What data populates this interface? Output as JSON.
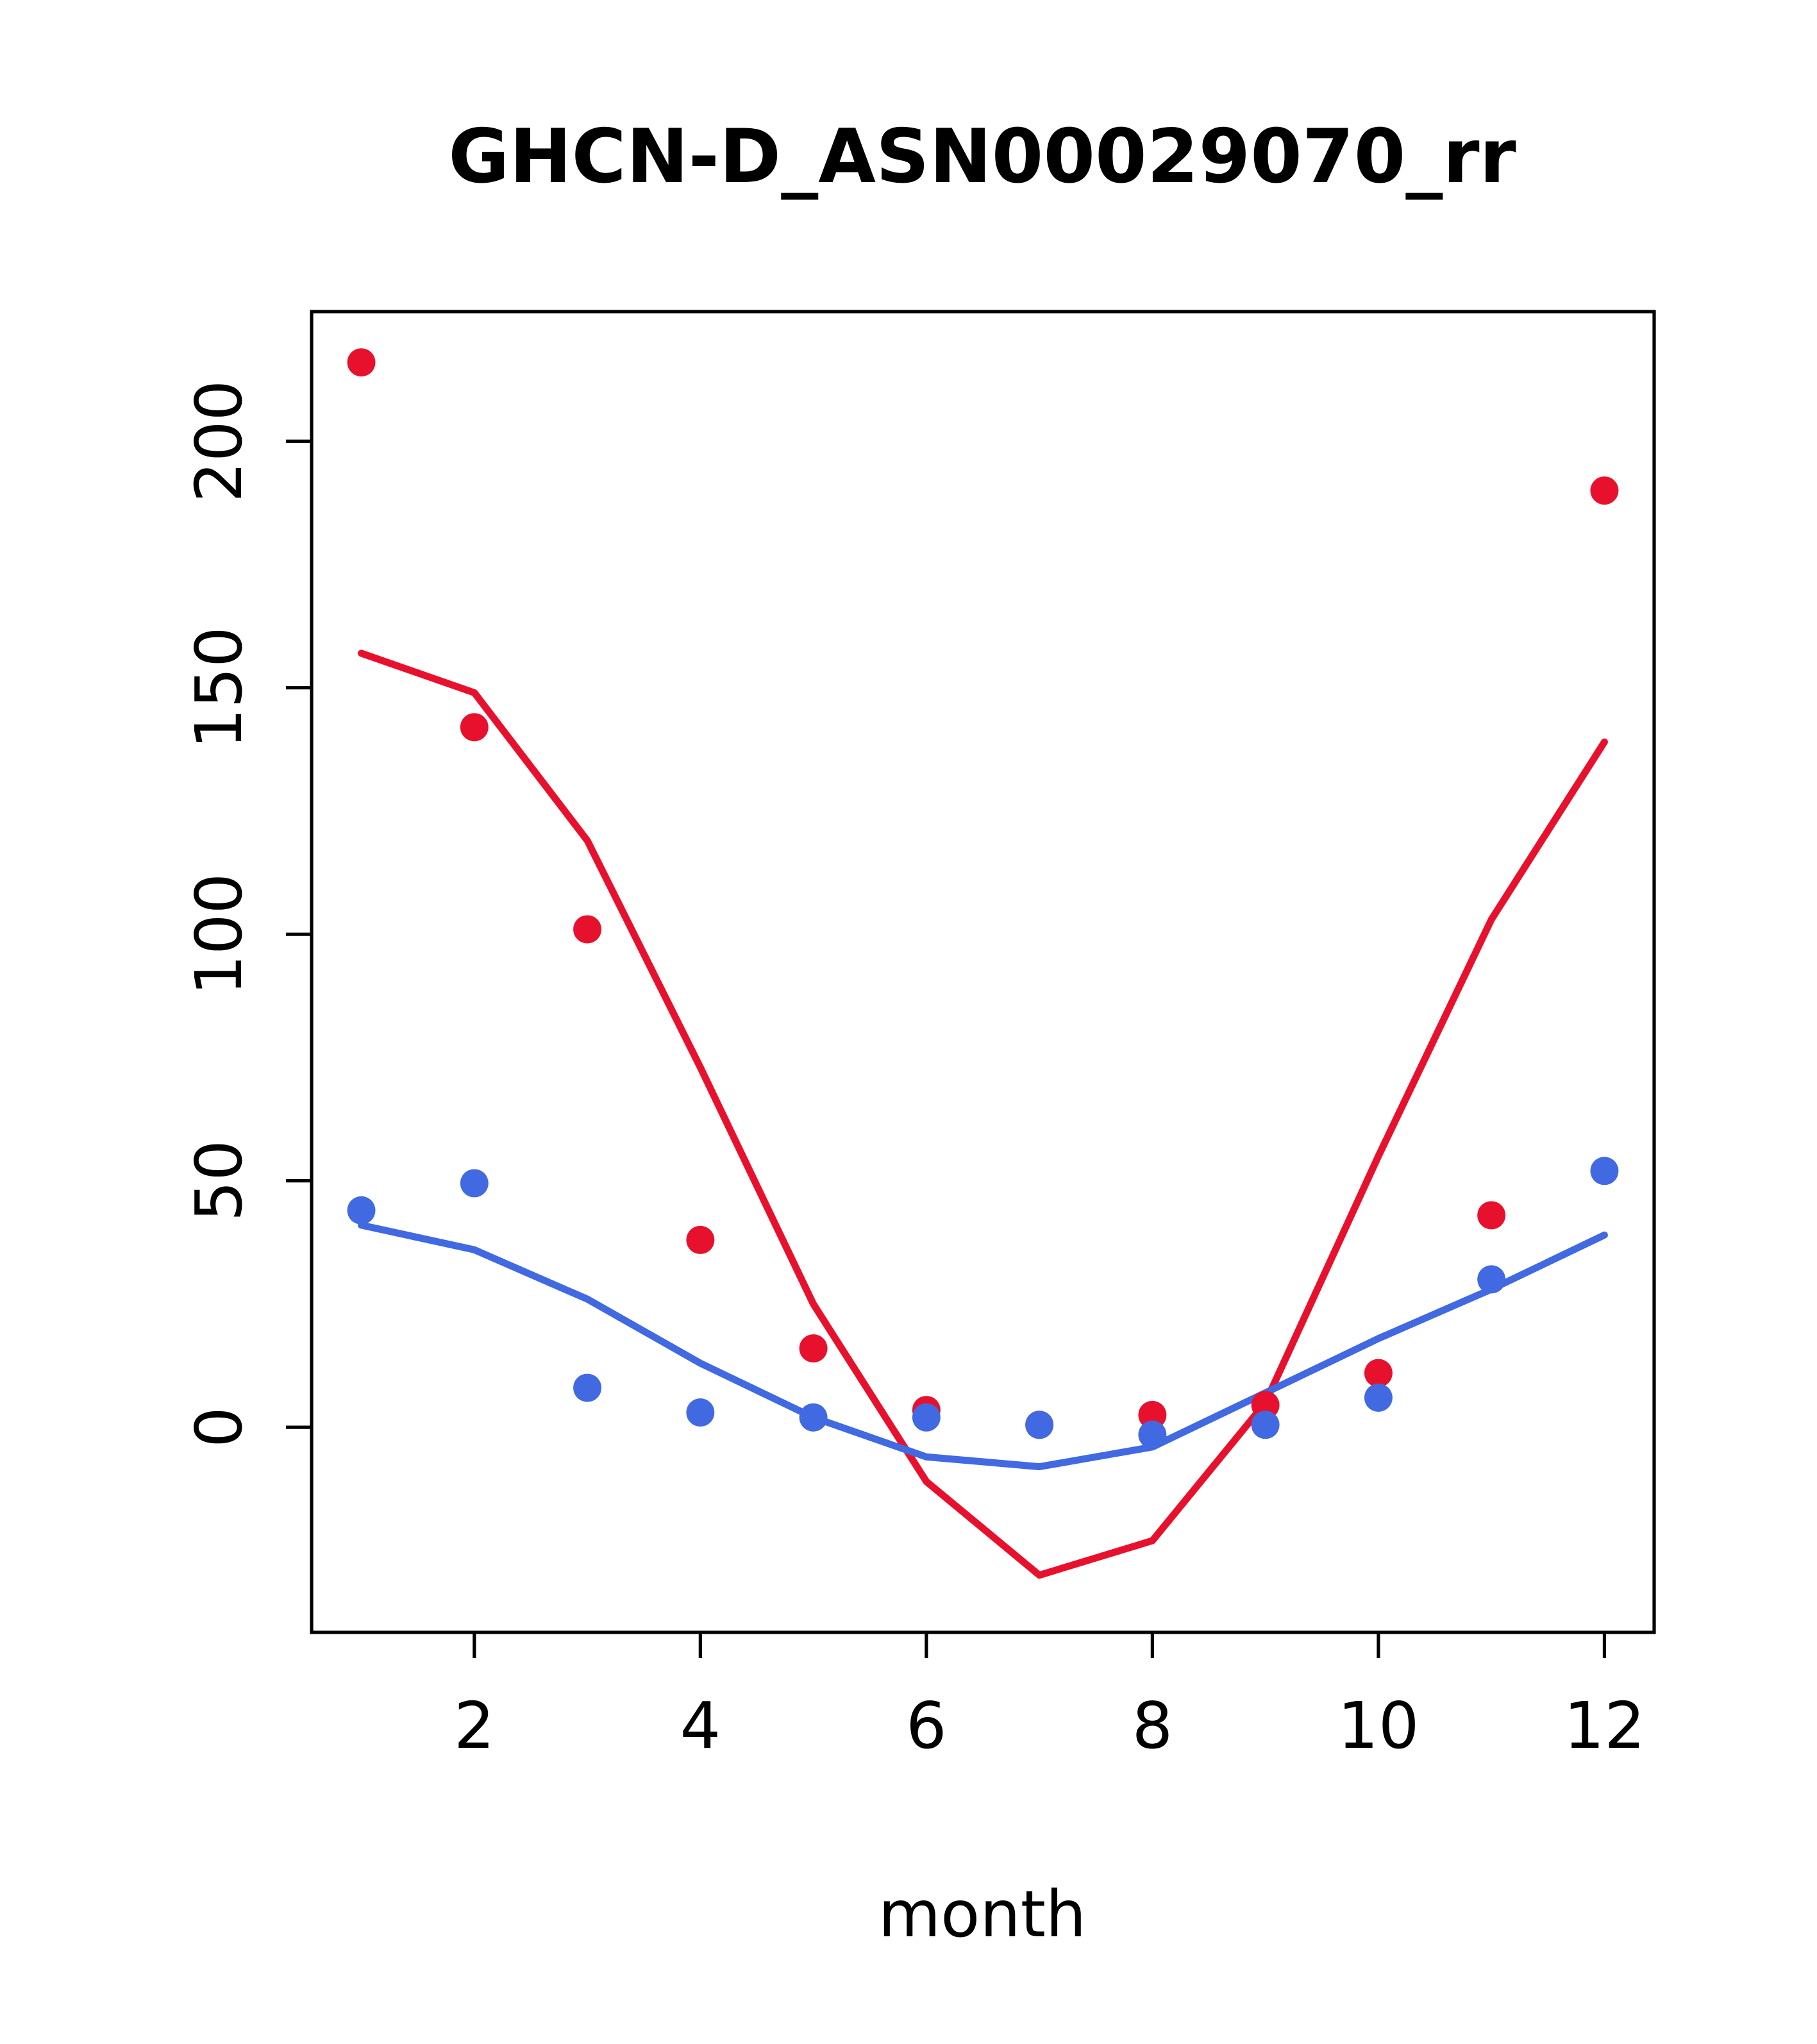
{
  "chart_data": {
    "type": "scatter",
    "title": "GHCN-D_ASN00029070_rr",
    "xlabel": "month",
    "ylabel": "",
    "x_ticks": [
      2,
      4,
      6,
      8,
      10,
      12
    ],
    "y_ticks": [
      0,
      50,
      100,
      150,
      200
    ],
    "xlim": [
      0.56,
      12.44
    ],
    "ylim": [
      -41.6,
      226.3
    ],
    "grid": false,
    "legend": "none",
    "months": [
      1,
      2,
      3,
      4,
      5,
      6,
      7,
      8,
      9,
      10,
      11,
      12
    ],
    "colors": {
      "red": "#e8112d",
      "blue": "#4169e1"
    },
    "series": [
      {
        "name": "red-fit-line",
        "type": "line",
        "color": "red",
        "values": [
          157,
          149,
          119,
          73,
          25,
          -11,
          -30,
          -23,
          5,
          55,
          103,
          139
        ]
      },
      {
        "name": "blue-fit-line",
        "type": "line",
        "color": "blue",
        "values": [
          41,
          36,
          26,
          13,
          2,
          -6,
          -8,
          -4,
          7,
          18,
          28,
          39
        ]
      },
      {
        "name": "red-monthly-points",
        "type": "points",
        "color": "red",
        "values": [
          216,
          142,
          101,
          38,
          16,
          3.5,
          0.5,
          2.5,
          4.5,
          11,
          43,
          190
        ]
      },
      {
        "name": "blue-monthly-points",
        "type": "points",
        "color": "blue",
        "values": [
          44,
          49.5,
          8,
          3,
          2,
          2,
          0.5,
          -1.5,
          0.5,
          6,
          30,
          52
        ]
      }
    ]
  }
}
